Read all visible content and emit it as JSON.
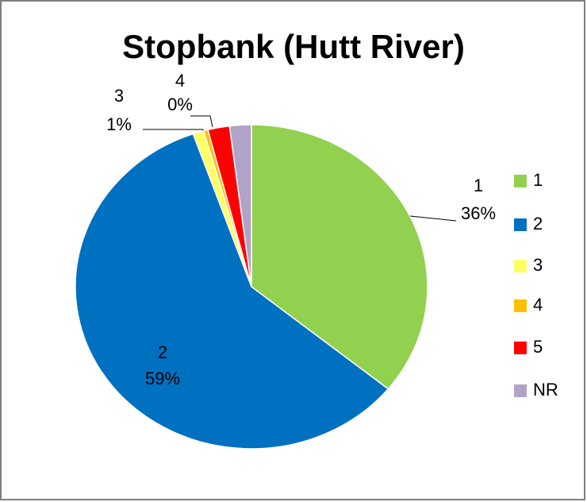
{
  "chart_data": {
    "type": "pie",
    "title": "Stopbank (Hutt River)",
    "categories": [
      "1",
      "2",
      "3",
      "4",
      "5",
      "NR"
    ],
    "values": [
      36,
      59,
      1,
      0.4,
      2,
      2
    ],
    "value_labels": [
      "36%",
      "59%",
      "1%",
      "0%",
      null,
      null
    ],
    "colors": [
      "#92d050",
      "#0070c0",
      "#ffff66",
      "#ffc000",
      "#ff0000",
      "#b3a2c7"
    ],
    "legend": "right"
  }
}
